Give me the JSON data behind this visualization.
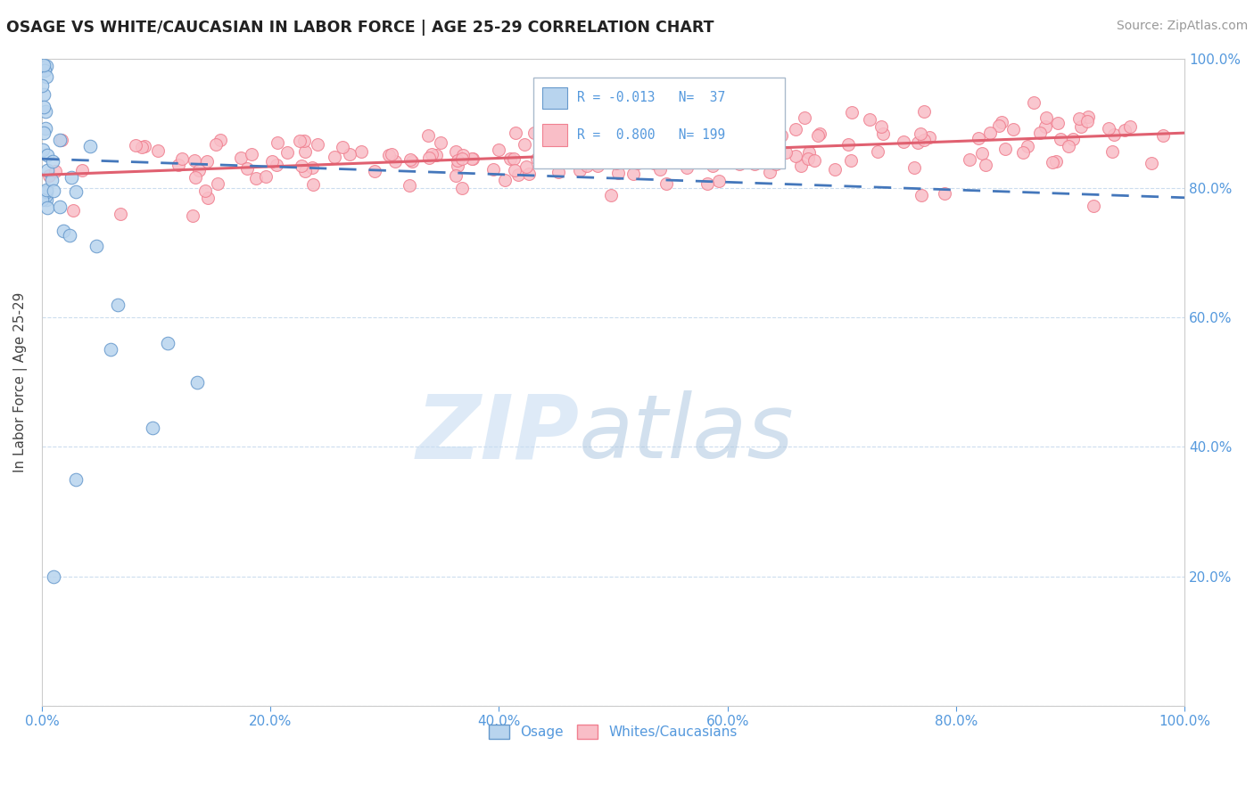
{
  "title": "OSAGE VS WHITE/CAUCASIAN IN LABOR FORCE | AGE 25-29 CORRELATION CHART",
  "source": "Source: ZipAtlas.com",
  "ylabel": "In Labor Force | Age 25-29",
  "xlim": [
    0.0,
    1.0
  ],
  "ylim": [
    0.0,
    1.0
  ],
  "osage_R": -0.013,
  "osage_N": 37,
  "osage_intercept": 0.845,
  "osage_slope": -0.06,
  "white_R": 0.8,
  "white_N": 199,
  "white_intercept": 0.82,
  "white_slope": 0.065,
  "yticks": [
    0.0,
    0.2,
    0.4,
    0.6,
    0.8,
    1.0
  ],
  "xticks": [
    0.0,
    0.2,
    0.4,
    0.6,
    0.8,
    1.0
  ],
  "bg_color": "#ffffff",
  "osage_face": "#b8d4ee",
  "osage_edge": "#6699cc",
  "white_face": "#f9bec7",
  "white_edge": "#f08090",
  "blue_line_color": "#4477bb",
  "pink_line_color": "#e06070",
  "tick_color": "#5599dd",
  "grid_color": "#ccddee",
  "legend_R1": "R = -0.013",
  "legend_N1": "N=  37",
  "legend_R2": "R =  0.800",
  "legend_N2": "N= 199",
  "watermark_zip": "ZIP",
  "watermark_atlas": "atlas"
}
